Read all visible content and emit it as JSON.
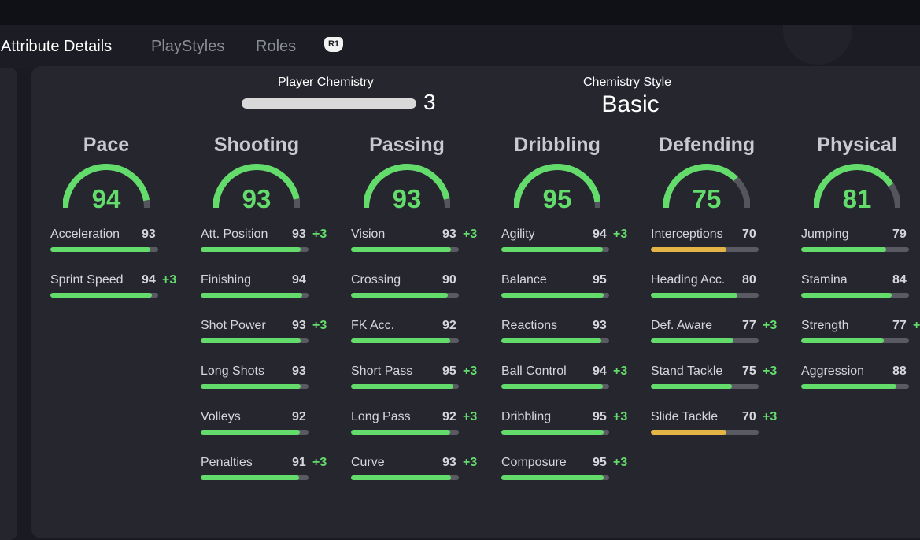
{
  "tabs": [
    {
      "label": "Attribute Details",
      "active": true
    },
    {
      "label": "PlayStyles",
      "active": false
    },
    {
      "label": "Roles",
      "active": false
    }
  ],
  "button_hint": "R1",
  "chemistry": {
    "player_label": "Player Chemistry",
    "player_value": "3",
    "style_label": "Chemistry Style",
    "style_value": "Basic"
  },
  "colors": {
    "green": "#64dc6c",
    "yellow": "#e4b446",
    "track": "#5a5b62",
    "gauge_track": "#55565d"
  },
  "categories": [
    {
      "name": "Pace",
      "value": 94,
      "attributes": [
        {
          "name": "Acceleration",
          "value": "93",
          "boost": "",
          "color": "green"
        },
        {
          "name": "Sprint Speed",
          "value": "94",
          "boost": "+3",
          "color": "green"
        }
      ]
    },
    {
      "name": "Shooting",
      "value": 93,
      "attributes": [
        {
          "name": "Att. Position",
          "value": "93",
          "boost": "+3",
          "color": "green"
        },
        {
          "name": "Finishing",
          "value": "94",
          "boost": "",
          "color": "green"
        },
        {
          "name": "Shot Power",
          "value": "93",
          "boost": "+3",
          "color": "green"
        },
        {
          "name": "Long Shots",
          "value": "93",
          "boost": "",
          "color": "green"
        },
        {
          "name": "Volleys",
          "value": "92",
          "boost": "",
          "color": "green"
        },
        {
          "name": "Penalties",
          "value": "91",
          "boost": "+3",
          "color": "green"
        }
      ]
    },
    {
      "name": "Passing",
      "value": 93,
      "attributes": [
        {
          "name": "Vision",
          "value": "93",
          "boost": "+3",
          "color": "green"
        },
        {
          "name": "Crossing",
          "value": "90",
          "boost": "",
          "color": "green"
        },
        {
          "name": "FK Acc.",
          "value": "92",
          "boost": "",
          "color": "green"
        },
        {
          "name": "Short Pass",
          "value": "95",
          "boost": "+3",
          "color": "green"
        },
        {
          "name": "Long Pass",
          "value": "92",
          "boost": "+3",
          "color": "green"
        },
        {
          "name": "Curve",
          "value": "93",
          "boost": "+3",
          "color": "green"
        }
      ]
    },
    {
      "name": "Dribbling",
      "value": 95,
      "attributes": [
        {
          "name": "Agility",
          "value": "94",
          "boost": "+3",
          "color": "green"
        },
        {
          "name": "Balance",
          "value": "95",
          "boost": "",
          "color": "green"
        },
        {
          "name": "Reactions",
          "value": "93",
          "boost": "",
          "color": "green"
        },
        {
          "name": "Ball Control",
          "value": "94",
          "boost": "+3",
          "color": "green"
        },
        {
          "name": "Dribbling",
          "value": "95",
          "boost": "+3",
          "color": "green"
        },
        {
          "name": "Composure",
          "value": "95",
          "boost": "+3",
          "color": "green"
        }
      ]
    },
    {
      "name": "Defending",
      "value": 75,
      "attributes": [
        {
          "name": "Interceptions",
          "value": "70",
          "boost": "",
          "color": "yellow"
        },
        {
          "name": "Heading Acc.",
          "value": "80",
          "boost": "",
          "color": "green"
        },
        {
          "name": "Def. Aware",
          "value": "77",
          "boost": "+3",
          "color": "green"
        },
        {
          "name": "Stand Tackle",
          "value": "75",
          "boost": "+3",
          "color": "green"
        },
        {
          "name": "Slide Tackle",
          "value": "70",
          "boost": "+3",
          "color": "yellow"
        }
      ]
    },
    {
      "name": "Physical",
      "value": 81,
      "attributes": [
        {
          "name": "Jumping",
          "value": "79",
          "boost": "",
          "color": "green"
        },
        {
          "name": "Stamina",
          "value": "84",
          "boost": "",
          "color": "green"
        },
        {
          "name": "Strength",
          "value": "77",
          "boost": "+",
          "color": "green"
        },
        {
          "name": "Aggression",
          "value": "88",
          "boost": "",
          "color": "green"
        }
      ]
    }
  ]
}
